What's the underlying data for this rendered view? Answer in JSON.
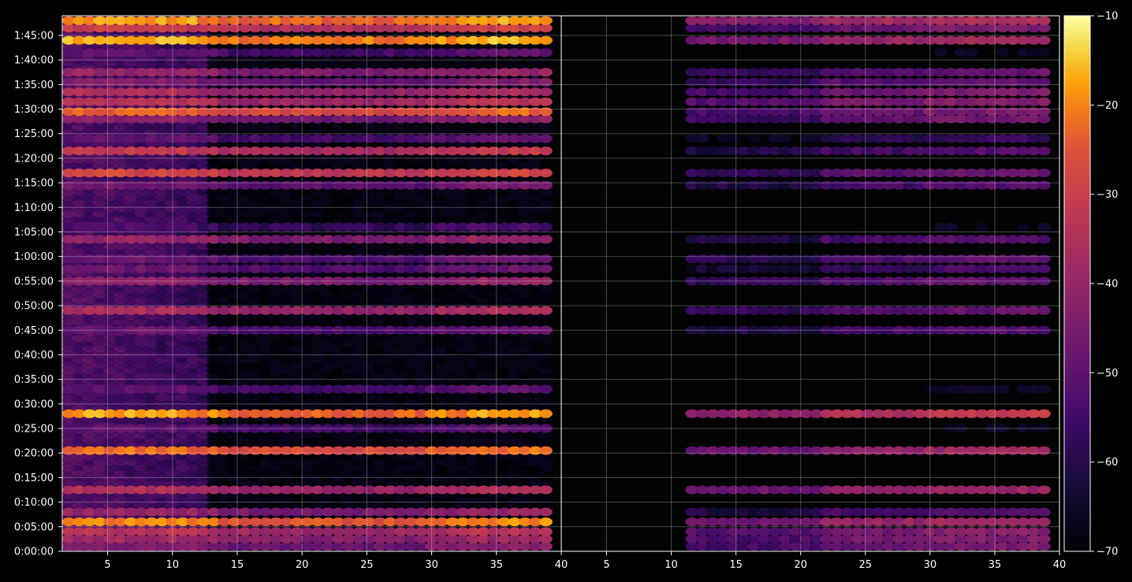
{
  "chart_data": {
    "type": "heatmap",
    "title": "",
    "xlabel": "",
    "ylabel": "",
    "panels": [
      {
        "name": "",
        "x_range": [
          1.5,
          40
        ],
        "x_ticks": [
          5,
          10,
          15,
          20,
          25,
          30,
          35,
          40
        ]
      },
      {
        "name": "",
        "x_range": [
          1.5,
          40
        ],
        "x_ticks": [
          5,
          10,
          15,
          20,
          25,
          30,
          35,
          40
        ]
      }
    ],
    "y_ticks": [
      "0:00:00",
      "0:05:00",
      "0:10:00",
      "0:15:00",
      "0:20:00",
      "0:25:00",
      "0:30:00",
      "0:35:00",
      "0:40:00",
      "0:45:00",
      "0:50:00",
      "0:55:00",
      "1:00:00",
      "1:05:00",
      "1:10:00",
      "1:15:00",
      "1:20:00",
      "1:25:00",
      "1:30:00",
      "1:35:00",
      "1:40:00",
      "1:45:00"
    ],
    "y_range_minutes": [
      0,
      109
    ],
    "colorbar": {
      "colormap": "inferno",
      "range": [
        -70,
        -10
      ],
      "ticks": [
        "−70",
        "−60",
        "−50",
        "−40",
        "−30",
        "−20",
        "−10"
      ]
    },
    "bands": [
      {
        "t": 1.0,
        "left": -45,
        "right": -48
      },
      {
        "t": 2.5,
        "left": -40,
        "right": -47
      },
      {
        "t": 4.0,
        "left": -36,
        "right": -46
      },
      {
        "t": 6.0,
        "left": -22,
        "right": -40
      },
      {
        "t": 8.0,
        "left": -42,
        "right": -55
      },
      {
        "t": 12.5,
        "left": -37,
        "right": -42
      },
      {
        "t": 20.5,
        "left": -24,
        "right": -42
      },
      {
        "t": 25.0,
        "left": -52,
        "right": -70
      },
      {
        "t": 28.0,
        "left": -20,
        "right": -35
      },
      {
        "t": 33.0,
        "left": -52,
        "right": -70
      },
      {
        "t": 45.0,
        "left": -50,
        "right": -55
      },
      {
        "t": 49.0,
        "left": -38,
        "right": -52
      },
      {
        "t": 55.0,
        "left": -42,
        "right": -52
      },
      {
        "t": 57.5,
        "left": -50,
        "right": -58
      },
      {
        "t": 59.5,
        "left": -50,
        "right": -53
      },
      {
        "t": 63.5,
        "left": -42,
        "right": -55
      },
      {
        "t": 66.0,
        "left": -55,
        "right": -70
      },
      {
        "t": 74.5,
        "left": -48,
        "right": -55
      },
      {
        "t": 77.0,
        "left": -30,
        "right": -52
      },
      {
        "t": 81.5,
        "left": -34,
        "right": -55
      },
      {
        "t": 84.0,
        "left": -52,
        "right": -60
      },
      {
        "t": 88.0,
        "left": -44,
        "right": -50
      },
      {
        "t": 89.5,
        "left": -25,
        "right": -48
      },
      {
        "t": 91.5,
        "left": -36,
        "right": -46
      },
      {
        "t": 93.5,
        "left": -38,
        "right": -48
      },
      {
        "t": 95.5,
        "left": -46,
        "right": -52
      },
      {
        "t": 97.5,
        "left": -42,
        "right": -52
      },
      {
        "t": 101.5,
        "left": -52,
        "right": -70
      },
      {
        "t": 104.0,
        "left": -18,
        "right": -40
      },
      {
        "t": 106.5,
        "left": -32,
        "right": -48
      },
      {
        "t": 108.0,
        "left": -20,
        "right": -38
      }
    ]
  }
}
